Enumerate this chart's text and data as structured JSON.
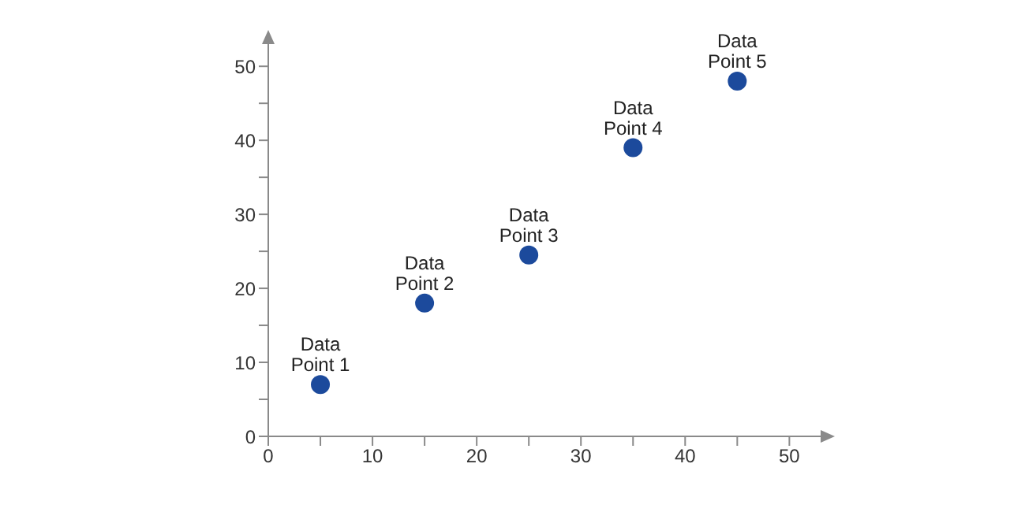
{
  "chart_data": {
    "type": "scatter",
    "x": [
      5,
      15,
      25,
      35,
      45
    ],
    "values": [
      7,
      18,
      24.5,
      39,
      48
    ],
    "value_labels": [
      "Data Point 1",
      "Data Point 2",
      "Data Point 3",
      "Data Point 4",
      "Data Point 5"
    ],
    "color": "#1c4a9c",
    "marker": "circle",
    "xlim": [
      0,
      53
    ],
    "ylim": [
      0,
      53
    ],
    "xticks": [
      0,
      {
        "value": 5,
        "label": null
      },
      10,
      {
        "value": 15,
        "label": null
      },
      20,
      {
        "value": 25,
        "label": null
      },
      30,
      {
        "value": 35,
        "label": null
      },
      40,
      {
        "value": 45,
        "label": null
      },
      50
    ],
    "yticks": [
      0,
      {
        "value": 5,
        "label": null
      },
      10,
      {
        "value": 15,
        "label": null
      },
      20,
      {
        "value": 25,
        "label": null
      },
      30,
      {
        "value": 35,
        "label": null
      },
      40,
      {
        "value": 45,
        "label": null
      },
      50
    ]
  }
}
